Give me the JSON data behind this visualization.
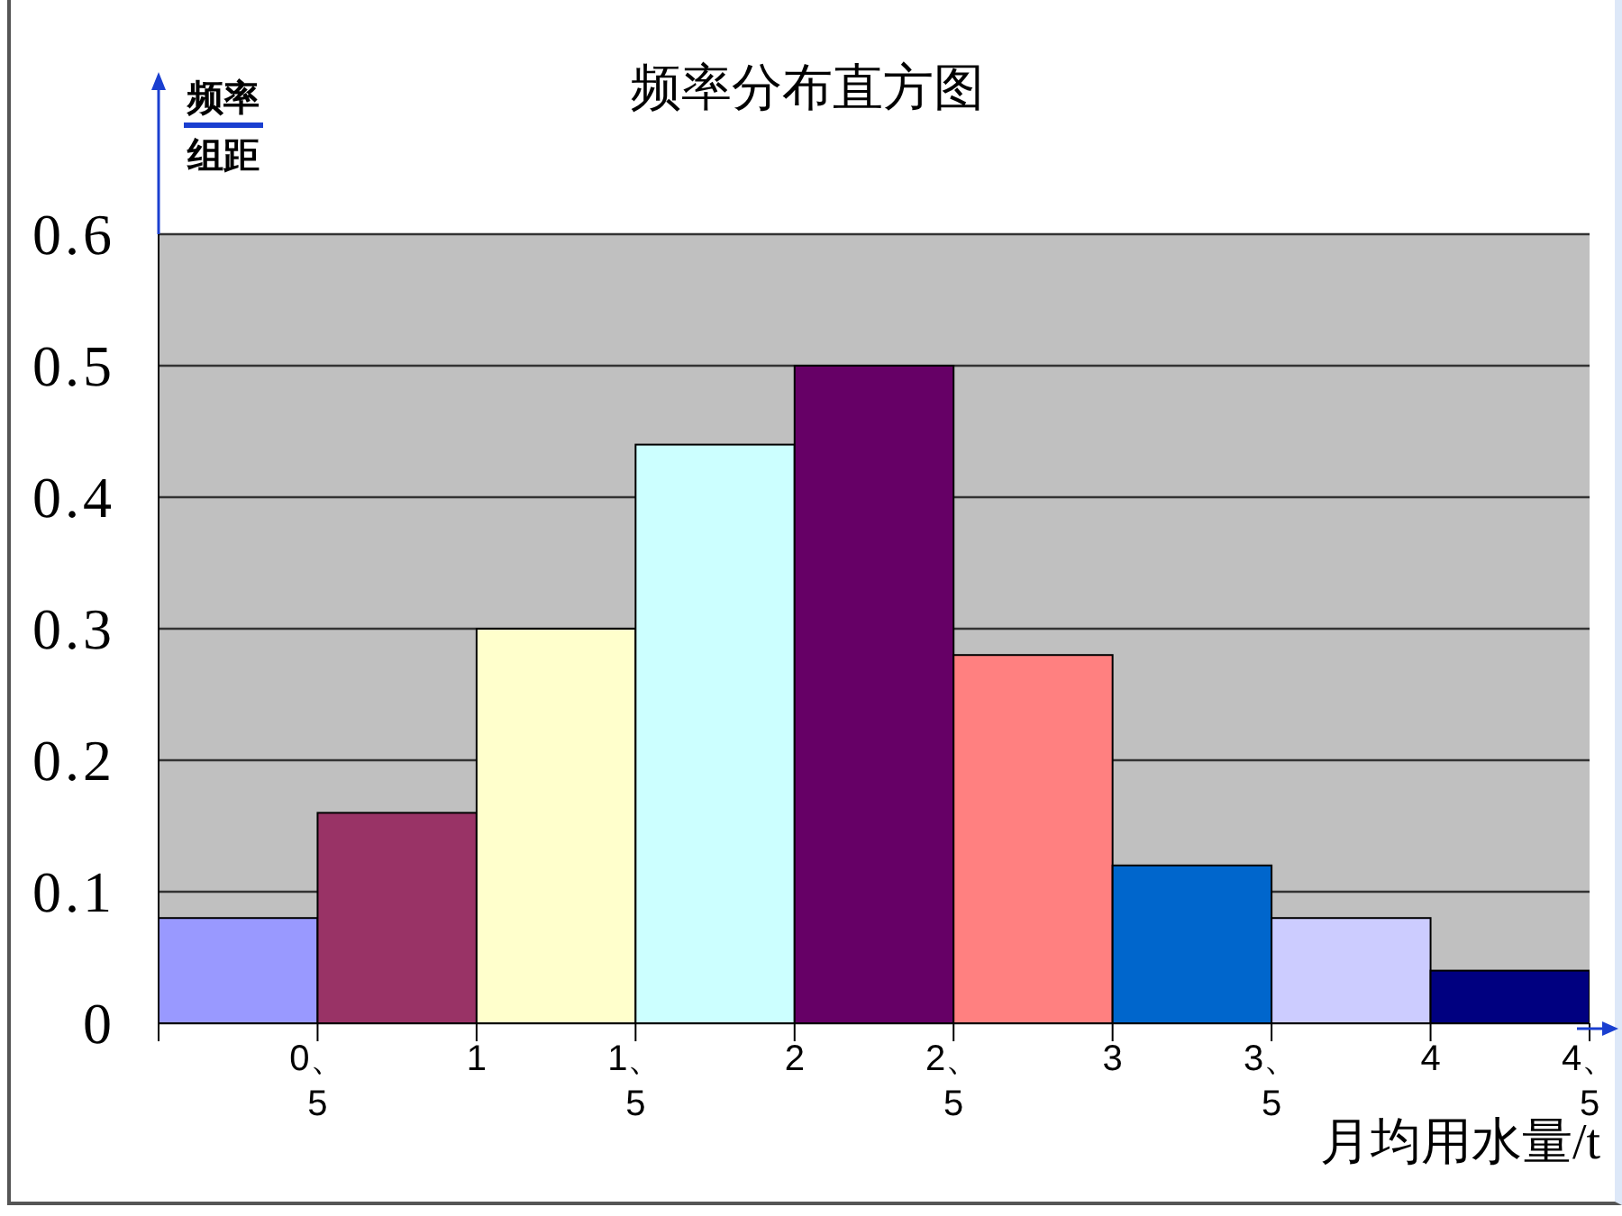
{
  "chart_data": {
    "type": "histogram",
    "title": "频率分布直方图",
    "xlabel": "月均用水量/t",
    "ylabel": "频率组距",
    "bins": [
      0,
      0.5,
      1,
      1.5,
      2,
      2.5,
      3,
      3.5,
      4,
      4.5
    ],
    "values": [
      0.08,
      0.16,
      0.3,
      0.44,
      0.5,
      0.28,
      0.12,
      0.08,
      0.04
    ],
    "colors": [
      "#9999ff",
      "#993366",
      "#ffffcc",
      "#ccffff",
      "#660066",
      "#ff8080",
      "#0066cc",
      "#ccccff",
      "#000080"
    ],
    "xlim": [
      0,
      4.5
    ],
    "xticks": [
      {
        "value": 0,
        "label": null
      },
      {
        "value": 0.5,
        "label": "0、5"
      },
      {
        "value": 1,
        "label": "1"
      },
      {
        "value": 1.5,
        "label": "1、5"
      },
      {
        "value": 2,
        "label": "2"
      },
      {
        "value": 2.5,
        "label": "2、5"
      },
      {
        "value": 3,
        "label": "3"
      },
      {
        "value": 3.5,
        "label": "3、5"
      },
      {
        "value": 4,
        "label": "4"
      },
      {
        "value": 4.5,
        "label": "4、5"
      }
    ],
    "ylim": [
      0,
      0.6
    ],
    "yticks": [
      0,
      0.1,
      0.2,
      0.3,
      0.4,
      0.5,
      0.6
    ],
    "grid": "y"
  }
}
